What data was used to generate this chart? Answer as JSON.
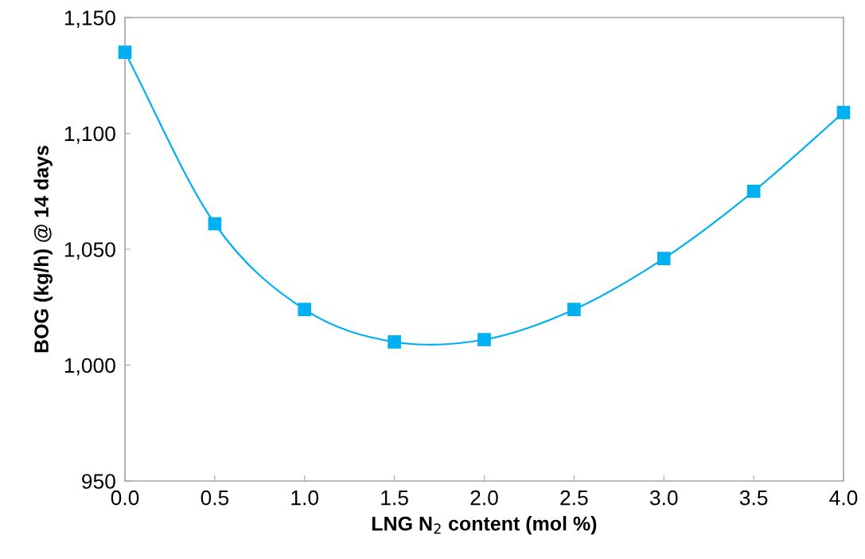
{
  "chart_data": {
    "type": "line",
    "xlabel": "LNG N$_{2}$ content (mol %)",
    "ylabel": "BOG (kg/h) @ 14 days",
    "x": [
      0,
      0.5,
      1,
      1.5,
      2,
      2.5,
      3,
      3.5,
      4
    ],
    "series": [
      {
        "color": "#00b0f0",
        "values": [
          1135,
          1061,
          1024,
          1010,
          1011,
          1024,
          1046,
          1075,
          1109
        ]
      }
    ],
    "marker": "square",
    "line_style": "solid",
    "grid": false,
    "xlim": [
      0,
      4
    ],
    "xticks": [
      {
        "value": 0,
        "label": "0.0"
      },
      {
        "value": 0.5,
        "label": "0.5"
      },
      {
        "value": 1,
        "label": "1.0"
      },
      {
        "value": 1.5,
        "label": "1.5"
      },
      {
        "value": 2,
        "label": "2.0"
      },
      {
        "value": 2.5,
        "label": "2.5"
      },
      {
        "value": 3,
        "label": "3.0"
      },
      {
        "value": 3.5,
        "label": "3.5"
      },
      {
        "value": 4,
        "label": "4.0"
      }
    ],
    "ylim": [
      950,
      1150
    ],
    "yticks": [
      950,
      {
        "value": 1000,
        "label": "1,000"
      },
      {
        "value": 1050,
        "label": "1,050"
      },
      {
        "value": 1100,
        "label": "1,100"
      },
      {
        "value": 1150,
        "label": "1,150"
      }
    ]
  }
}
